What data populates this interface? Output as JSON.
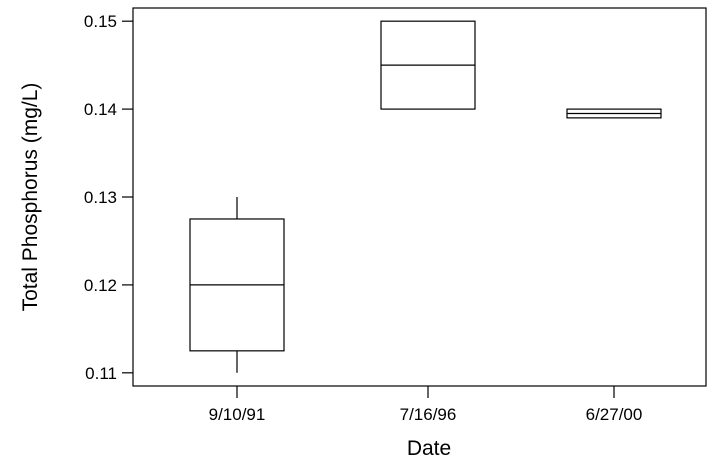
{
  "chart_data": {
    "type": "box",
    "title": "",
    "xlabel": "Date",
    "ylabel": "Total Phosphorus (mg/L)",
    "ylim": [
      0.1085,
      0.1515
    ],
    "yticks": [
      0.11,
      0.12,
      0.13,
      0.14,
      0.15
    ],
    "ytick_labels": [
      "0.11",
      "0.12",
      "0.13",
      "0.14",
      "0.15"
    ],
    "grid": false,
    "categories": [
      "9/10/91",
      "7/16/96",
      "6/27/00"
    ],
    "boxes": [
      {
        "category": "9/10/91",
        "whisker_low": 0.11,
        "q1": 0.1125,
        "median": 0.12,
        "q3": 0.1275,
        "whisker_high": 0.13
      },
      {
        "category": "7/16/96",
        "whisker_low": 0.14,
        "q1": 0.14,
        "median": 0.145,
        "q3": 0.15,
        "whisker_high": 0.15
      },
      {
        "category": "6/27/00",
        "whisker_low": 0.139,
        "q1": 0.139,
        "median": 0.1395,
        "q3": 0.14,
        "whisker_high": 0.14
      }
    ],
    "colors": {
      "stroke": "#000000",
      "background": "#ffffff"
    }
  }
}
